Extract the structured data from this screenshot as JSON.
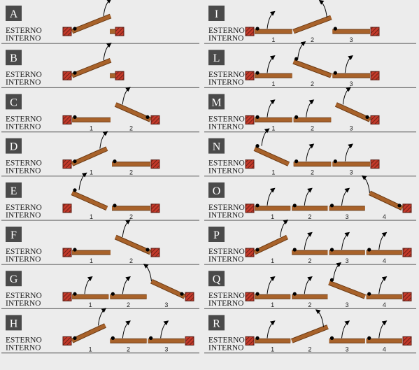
{
  "colors": {
    "background": "#ececec",
    "badge": "#4a4a4a",
    "badge_text": "#ffffff",
    "separator": "#6b6b6b",
    "leaf_fill": "#a8622a",
    "leaf_stroke": "#6b3a14",
    "wall": "#c4392a",
    "wall_stroke": "#5a1c12",
    "pivot": "#000000",
    "label_text": "#1e1e1e"
  },
  "side_labels": {
    "outside": "ESTERNO",
    "inside": "INTERNO"
  },
  "configurations": [
    {
      "letter": "A",
      "panels": [
        "hinge-left-open-up"
      ],
      "numbers": []
    },
    {
      "letter": "B",
      "panels": [
        "hinge-left-open-up"
      ],
      "numbers": []
    },
    {
      "letter": "C",
      "panels": [
        "fixed",
        "hinge-right-open-up"
      ],
      "numbers": [
        "1",
        "2"
      ]
    },
    {
      "letter": "D",
      "panels": [
        "hinge-left-open-up",
        "fixed"
      ],
      "numbers": [
        "1",
        "2"
      ]
    },
    {
      "letter": "E",
      "panels": [
        "hinge-left-open-down",
        "fixed"
      ],
      "numbers": [
        "1",
        "2"
      ]
    },
    {
      "letter": "F",
      "panels": [
        "fixed",
        "hinge-right-open-up"
      ],
      "numbers": [
        "1",
        "2"
      ]
    },
    {
      "letter": "G",
      "panels": [
        "fixed-arrow",
        "fixed-arrow",
        "hinge-right-open-down"
      ],
      "numbers": [
        "1",
        "2",
        "3"
      ]
    },
    {
      "letter": "H",
      "panels": [
        "hinge-left-open-up",
        "fixed-arrow",
        "fixed-arrow"
      ],
      "numbers": [
        "1",
        "2",
        "3"
      ]
    },
    {
      "letter": "I",
      "panels": [
        "fixed-arrow",
        "center-open-up",
        "fixed"
      ],
      "numbers": [
        "1",
        "2",
        "3"
      ]
    },
    {
      "letter": "L",
      "panels": [
        "fixed-arrow",
        "center-open-down",
        "fixed-arrow"
      ],
      "numbers": [
        "1",
        "2",
        "3"
      ]
    },
    {
      "letter": "M",
      "panels": [
        "fixed-arrow",
        "fixed-arrow",
        "hinge-right-open-up"
      ],
      "numbers": [
        "1",
        "2",
        "3"
      ]
    },
    {
      "letter": "N",
      "panels": [
        "hinge-left-open-down",
        "fixed-arrow",
        "fixed-arrow"
      ],
      "numbers": [
        "1",
        "2",
        "3"
      ]
    },
    {
      "letter": "O",
      "panels": [
        "fixed-arrow",
        "fixed-arrow",
        "fixed-arrow",
        "hinge-right-open-down"
      ],
      "numbers": [
        "1",
        "2",
        "3",
        "4"
      ]
    },
    {
      "letter": "P",
      "panels": [
        "hinge-left-open-up",
        "fixed-arrow",
        "fixed-arrow",
        "fixed-arrow"
      ],
      "numbers": [
        "1",
        "2",
        "3",
        "4"
      ]
    },
    {
      "letter": "Q",
      "panels": [
        "fixed-arrow",
        "fixed-arrow",
        "center-open-down",
        "fixed-arrow"
      ],
      "numbers": [
        "1",
        "2",
        "3",
        "4"
      ]
    },
    {
      "letter": "R",
      "panels": [
        "fixed-arrow",
        "center-open-up",
        "fixed-arrow",
        "fixed-arrow"
      ],
      "numbers": [
        "1",
        "2",
        "3",
        "4"
      ]
    }
  ]
}
